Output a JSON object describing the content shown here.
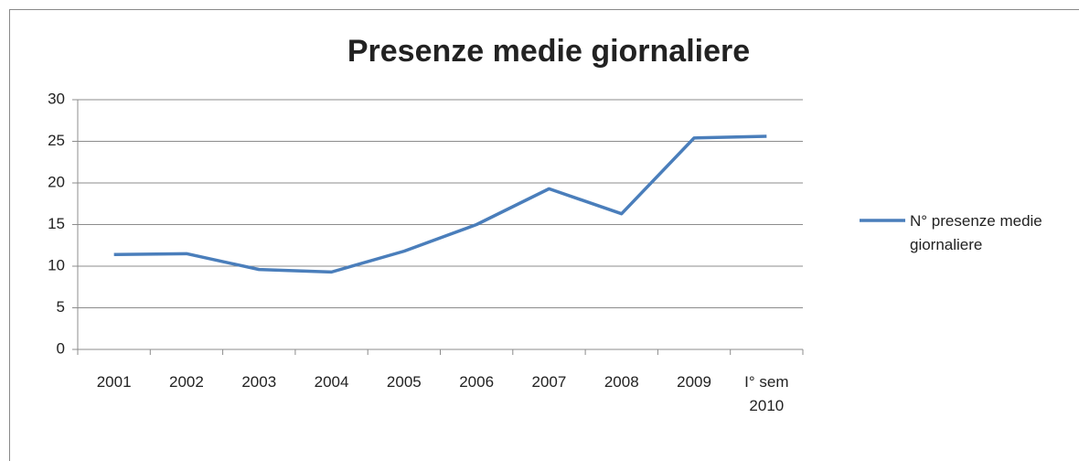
{
  "chart_data": {
    "type": "line",
    "title": "Presenze medie giornaliere",
    "categories": [
      "2001",
      "2002",
      "2003",
      "2004",
      "2005",
      "2006",
      "2007",
      "2008",
      "2009",
      "I° sem 2010"
    ],
    "series": [
      {
        "name": "N° presenze medie giornaliere",
        "color": "#4a7ebb",
        "values": [
          11.4,
          11.5,
          9.6,
          9.3,
          11.8,
          15.0,
          19.3,
          16.3,
          25.4,
          25.6
        ]
      }
    ],
    "ylim": [
      0,
      30
    ],
    "yticks": [
      0,
      5,
      10,
      15,
      20,
      25,
      30
    ],
    "grid": true,
    "legend": "right"
  }
}
